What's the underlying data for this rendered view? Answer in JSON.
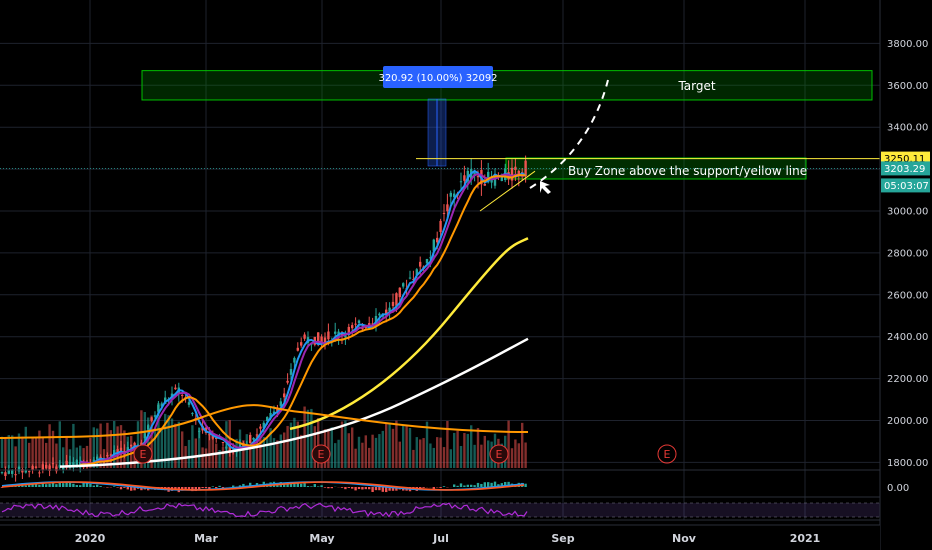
{
  "chart_data": {
    "type": "candlestick",
    "y_axis": {
      "ticks": [
        "3800.00",
        "3600.00",
        "3400.00",
        "3200.00",
        "3000.00",
        "2800.00",
        "2600.00",
        "2400.00",
        "2200.00",
        "2000.00",
        "1800.00"
      ],
      "tick_values": [
        3800,
        3600,
        3400,
        3200,
        3000,
        2800,
        2600,
        2400,
        2200,
        2000,
        1800
      ],
      "scale": "linear"
    },
    "x_axis": {
      "ticks": [
        "2020",
        "Mar",
        "May",
        "Jul",
        "Sep",
        "Nov",
        "2021"
      ]
    },
    "oscillator_axis": {
      "ticks": [
        "0.00"
      ]
    },
    "price_labels": [
      {
        "value": "3250.11",
        "bg": "#ffeb3b",
        "fg": "#000000"
      },
      {
        "value": "3203.29",
        "bg": "#26a69a",
        "fg": "#ffffff"
      },
      {
        "value": "05:03:07",
        "bg": "#26a69a",
        "fg": "#ffffff"
      }
    ],
    "measure_label": "320.92 (10.00%) 32092",
    "target_zone": {
      "label": "Target",
      "from": 3530,
      "to": 3670
    },
    "buy_zone": {
      "label": "Buy Zone above the support/yellow line"
    },
    "support_level": 3250.11,
    "earnings_marker": "E",
    "candles_sample": [
      {
        "date": "2019-11",
        "close": 1750
      },
      {
        "date": "2019-12",
        "close": 1790
      },
      {
        "date": "2020-01",
        "close": 1880
      },
      {
        "date": "2020-02",
        "close": 2150
      },
      {
        "date": "2020-03",
        "close": 1900
      },
      {
        "date": "2020-04",
        "close": 2400
      },
      {
        "date": "2020-05",
        "close": 2450
      },
      {
        "date": "2020-06",
        "close": 2700
      },
      {
        "date": "2020-07",
        "close": 3100
      },
      {
        "date": "2020-08",
        "close": 3203.29
      }
    ],
    "moving_averages": [
      {
        "color": "#2196f3"
      },
      {
        "color": "#9c27b0"
      },
      {
        "color": "#ff9800"
      },
      {
        "color": "#ffeb3b"
      },
      {
        "color": "#ffffff"
      }
    ],
    "colors": {
      "up": "#26a69a",
      "down": "#ef5350",
      "zone": "#00b300"
    }
  }
}
